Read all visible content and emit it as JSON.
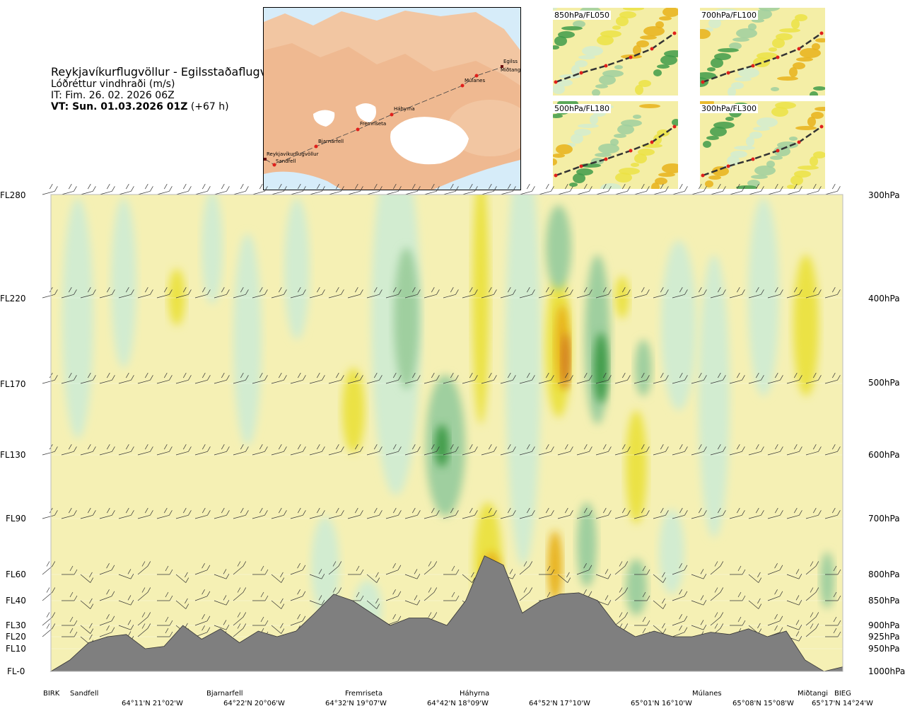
{
  "header": {
    "title": "Reykjavíkurflugvöllur - Egilsstaðaflugvöllur",
    "variable": "Lóðréttur vindhraði (m/s)",
    "issue_time": "IT: Fim. 26. 02. 2026 06Z",
    "valid_time": "VT: Sun. 01.03.2026 01Z",
    "lead_time": "(+67 h)"
  },
  "map_inset": {
    "stations": [
      "Reykjavíkurflugvöllur",
      "Sandfell",
      "Bjarnarfell",
      "Fremriseta",
      "Háhyrna",
      "Múlanes",
      "Egilss",
      "Miðtangi"
    ]
  },
  "level_maps": [
    {
      "label": "850hPa/FL050"
    },
    {
      "label": "700hPa/FL100"
    },
    {
      "label": "500hPa/FL180"
    },
    {
      "label": "300hPa/FL300"
    }
  ],
  "colors": {
    "strong_down": "#3f9b4a",
    "moderate_down": "#9fcf9f",
    "weak_down": "#d2ecd0",
    "near_zero": "#f5f0b4",
    "weak_up": "#ebe244",
    "moderate_up": "#e8b21a",
    "strong_up": "#d07820",
    "terrain": "#7f7f7f"
  },
  "chart_data": {
    "type": "heatmap",
    "title": "Reykjavíkurflugvöllur - Egilsstaðaflugvöllur",
    "variable": "Lóðréttur vindhraði (m/s)",
    "y_levels_fl": [
      "FL280",
      "FL220",
      "FL170",
      "FL130",
      "FL90",
      "FL60",
      "FL40",
      "FL30",
      "FL20",
      "FL10",
      "FL-0"
    ],
    "y_levels_hpa": [
      "300hPa",
      "400hPa",
      "500hPa",
      "600hPa",
      "700hPa",
      "800hPa",
      "850hPa",
      "900hPa",
      "925hPa",
      "950hPa",
      "1000hPa"
    ],
    "stations": [
      "BIRK",
      "Sandfell",
      "Bjarnarfell",
      "Fremriseta",
      "Háhyrna",
      "Múlanes",
      "Miðtangi",
      "BIEG"
    ],
    "coordinates": [
      "64°11'N 21°02'W",
      "64°22'N 20°06'W",
      "64°32'N 19°07'W",
      "64°42'N 18°09'W",
      "64°52'N 17°10'W",
      "65°01'N 16°10'W",
      "65°08'N 15°08'W",
      "65°17'N 14°24'W"
    ],
    "terrain_profile_fl": [
      0,
      0.5,
      1.5,
      2,
      2.2,
      1,
      1.2,
      3,
      1.8,
      2.7,
      1.5,
      2.5,
      2,
      2.5,
      3.5,
      4.5,
      4,
      3.5,
      3,
      3.3,
      3.3,
      3,
      4,
      7,
      6.5,
      3.5,
      4,
      4.5,
      4.6,
      4,
      3,
      2,
      2.5,
      2,
      2,
      2.4,
      2.2,
      2.7,
      2,
      2.5,
      0.5,
      0,
      0.2
    ]
  }
}
